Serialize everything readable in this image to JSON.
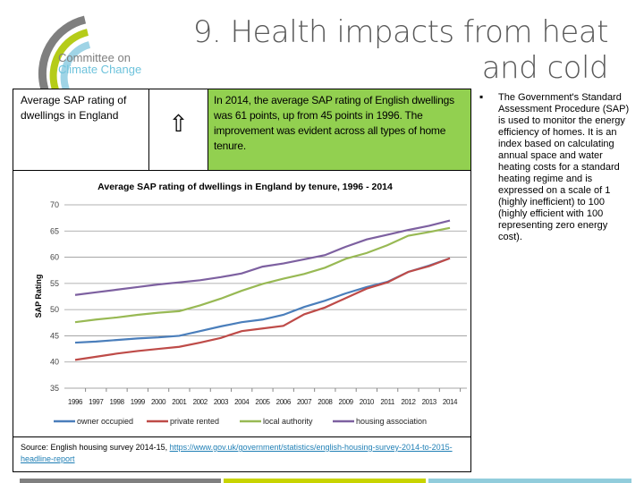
{
  "logo": {
    "text_line1": "Committee on",
    "text_line2": "Climate Change",
    "colors": [
      "#7f7f7f",
      "#b5cc18",
      "#9fd4e6"
    ]
  },
  "title": "9. Health impacts from heat and cold",
  "table": {
    "indicator": "Average SAP rating of dwellings in England",
    "trend_icon": "up-arrow-icon",
    "trend_glyph": "⇧",
    "summary": "In 2014, the average SAP rating of English dwellings was 61 points, up from 45 points in 1996. The improvement was evident across all types of home tenure.",
    "summary_bg": "#92d050"
  },
  "source": {
    "prefix": "Source: English housing survey 2014-15, ",
    "link": "https://www.gov.uk/government/statistics/english-housing-survey-2014-to-2015-headline-report"
  },
  "side_text": "The Government's Standard Assessment Procedure (SAP) is used to monitor the energy efficiency of homes.  It is an index based on calculating annual space and water heating costs for a standard heating regime and  is expressed on a scale of 1 (highly inefficient) to 100 (highly efficient with 100 representing zero energy cost).",
  "bottom_bars": [
    "#808080",
    "#c8d400",
    "#92cddc"
  ],
  "chart_data": {
    "type": "line",
    "title": "Average SAP rating of dwellings in England by tenure, 1996 - 2014",
    "xlabel": "",
    "ylabel": "SAP Rating",
    "categories": [
      "1996",
      "1997",
      "1998",
      "1999",
      "2000",
      "2001",
      "2002",
      "2003",
      "2004",
      "2005",
      "2006",
      "2007",
      "2008",
      "2009",
      "2010",
      "2011",
      "2012",
      "2013",
      "2014"
    ],
    "ylim": [
      35,
      70
    ],
    "yticks": [
      35,
      40,
      45,
      50,
      55,
      60,
      65,
      70
    ],
    "grid": true,
    "legend": "bottom",
    "series": [
      {
        "name": "owner occupied",
        "color": "#4a7ebb",
        "values": [
          43.7,
          43.9,
          44.2,
          44.5,
          44.7,
          45.0,
          45.9,
          46.8,
          47.6,
          48.1,
          49.0,
          50.5,
          51.7,
          53.1,
          54.3,
          55.3,
          57.2,
          58.4,
          59.8
        ]
      },
      {
        "name": "private rented",
        "color": "#be4b48",
        "values": [
          40.4,
          41.0,
          41.6,
          42.1,
          42.5,
          42.9,
          43.7,
          44.6,
          45.9,
          46.4,
          46.9,
          49.1,
          50.4,
          52.2,
          54.0,
          55.2,
          57.2,
          58.3,
          59.8
        ]
      },
      {
        "name": "local authority",
        "color": "#98b954",
        "values": [
          47.6,
          48.1,
          48.5,
          49.0,
          49.4,
          49.7,
          50.8,
          52.1,
          53.6,
          54.9,
          55.9,
          56.8,
          58.0,
          59.7,
          60.8,
          62.3,
          64.1,
          64.8,
          65.6
        ]
      },
      {
        "name": "housing association",
        "color": "#7d60a0",
        "values": [
          52.8,
          53.3,
          53.8,
          54.3,
          54.8,
          55.2,
          55.6,
          56.2,
          56.9,
          58.2,
          58.8,
          59.6,
          60.4,
          62.0,
          63.4,
          64.3,
          65.2,
          66.0,
          67.0
        ]
      }
    ]
  }
}
